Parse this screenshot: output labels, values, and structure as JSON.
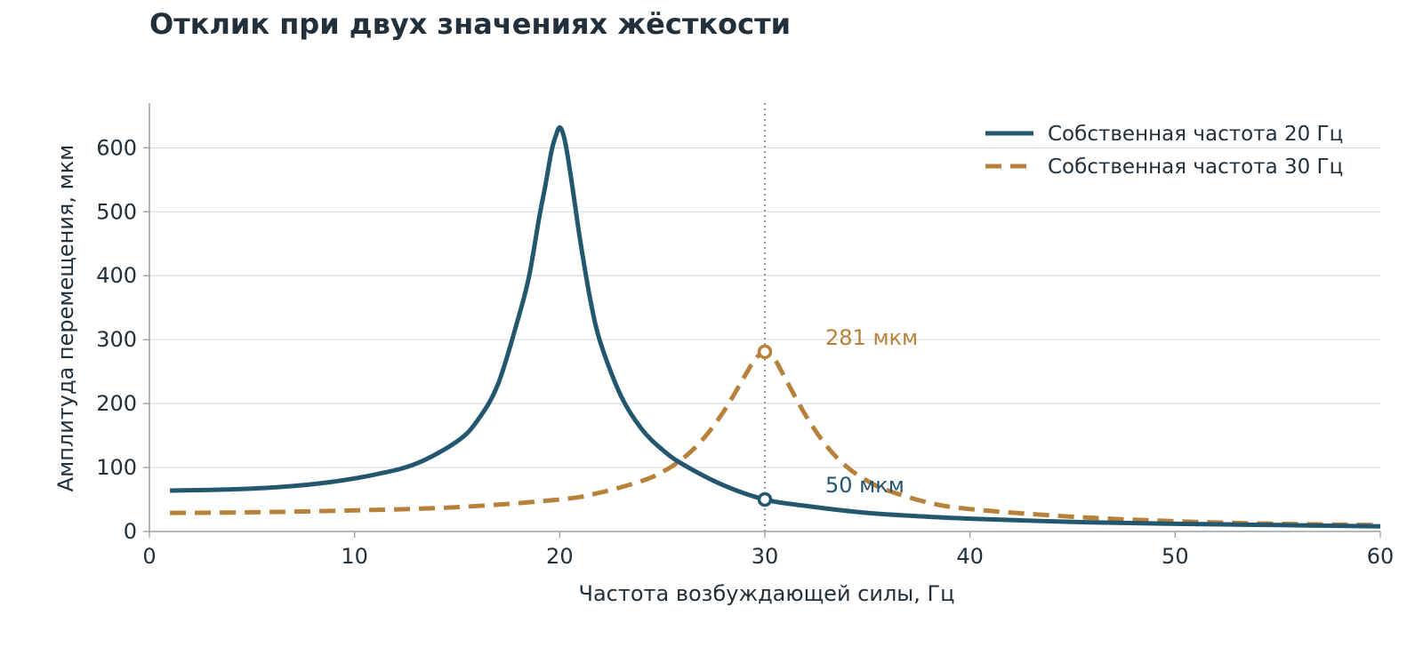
{
  "chart_data": {
    "type": "line",
    "title": "Отклик при двух значениях жёсткости",
    "xlabel": "Частота возбуждающей силы, Гц",
    "ylabel": "Амплитуда перемещения, мкм",
    "xlim": [
      0,
      60
    ],
    "ylim": [
      0,
      670
    ],
    "x_ticks": [
      0,
      10,
      20,
      30,
      40,
      50,
      60
    ],
    "y_ticks": [
      0,
      100,
      200,
      300,
      400,
      500,
      600
    ],
    "grid": "horizontal",
    "legend_position": "top-right",
    "colors": {
      "series1": "#23566f",
      "series2": "#b8813a",
      "text": "#22303c",
      "grid": "#d9dde1",
      "axis": "#9aa1a7"
    },
    "series": [
      {
        "name": "Собственная частота 20 Гц",
        "style": "solid",
        "x": [
          1,
          3,
          5,
          7,
          9,
          11,
          13,
          15,
          16,
          17,
          18,
          18.5,
          19,
          19.3,
          19.6,
          19.8,
          20,
          20.2,
          20.4,
          20.7,
          21,
          21.5,
          22,
          23,
          24,
          25,
          26,
          28,
          30,
          32,
          35,
          38,
          40,
          45,
          50,
          55,
          60
        ],
        "y": [
          64,
          65,
          67,
          71,
          78,
          89,
          106,
          141,
          174,
          231,
          336,
          398,
          491,
          541,
          595,
          618,
          632,
          618,
          585,
          521,
          455,
          361,
          294,
          211,
          160,
          128,
          105,
          72,
          50,
          40,
          29,
          23,
          20,
          15,
          12,
          10,
          8
        ]
      },
      {
        "name": "Собственная частота 30 Гц",
        "style": "dashed",
        "x": [
          1,
          5,
          10,
          15,
          20,
          22,
          24,
          25,
          26,
          27,
          28,
          29,
          29.5,
          30,
          30.5,
          31,
          32,
          33,
          34,
          35,
          36,
          38,
          40,
          45,
          50,
          55,
          60
        ],
        "y": [
          29,
          30,
          33,
          38,
          50,
          61,
          79,
          93,
          114,
          145,
          188,
          242,
          268,
          281,
          268,
          239,
          181,
          134,
          101,
          79,
          64,
          45,
          35,
          23,
          16,
          12,
          10
        ]
      }
    ],
    "reference_line": {
      "x": 30
    },
    "annotations": [
      {
        "x": 30,
        "y": 281,
        "text": "281 мкм",
        "series": 2
      },
      {
        "x": 30,
        "y": 50,
        "text": "50 мкм",
        "series": 1
      }
    ]
  }
}
